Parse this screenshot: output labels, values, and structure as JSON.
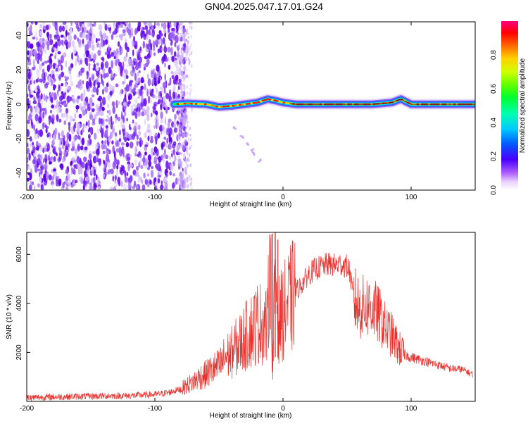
{
  "page": {
    "title": "GN04.2025.047.17.01.G24"
  },
  "chart_data": [
    {
      "type": "heatmap",
      "title": "GN04.2025.047.17.01.G24",
      "xlabel": "Height of straight line (km)",
      "ylabel": "Frequency (Hz)",
      "xlim": [
        -200,
        150
      ],
      "ylim": [
        -50,
        48
      ],
      "x_ticks": [
        -200,
        -100,
        0,
        100
      ],
      "y_ticks": [
        -40,
        -20,
        0,
        20,
        40
      ],
      "grid": false,
      "colorbar": {
        "label": "Normalized spectral amplitude",
        "range": [
          0,
          1
        ],
        "ticks": [
          0.0,
          0.2,
          0.4,
          0.6,
          0.8
        ]
      },
      "noise_region_x": [
        -200,
        -70
      ],
      "signal_start_x": -85,
      "ridge": {
        "x": [
          -85,
          -75,
          -60,
          -50,
          -40,
          -30,
          -20,
          -12,
          -5,
          0,
          10,
          30,
          50,
          70,
          85,
          92,
          100,
          120,
          150
        ],
        "y": [
          0,
          0.5,
          0,
          -1.5,
          -1,
          0,
          1,
          3,
          2,
          1,
          0,
          0,
          0,
          0,
          1,
          3,
          0,
          0,
          0
        ]
      },
      "trail": {
        "x": [
          -38,
          -32,
          -28,
          -24,
          -22,
          -18
        ],
        "y": [
          -14,
          -19,
          -23,
          -27,
          -29,
          -33
        ]
      }
    },
    {
      "type": "line",
      "xlabel": "Height of straight line (km)",
      "ylabel": "SNR (10 * v/v)",
      "xlim": [
        -200,
        150
      ],
      "ylim": [
        0,
        6900
      ],
      "x_ticks": [
        -200,
        -100,
        0,
        100
      ],
      "y_ticks": [
        2000,
        4000,
        6000
      ],
      "grid": false,
      "series": [
        {
          "color": "#e8322e",
          "x": [
            -200,
            -180,
            -160,
            -140,
            -120,
            -100,
            -90,
            -80,
            -70,
            -65,
            -60,
            -55,
            -50,
            -45,
            -40,
            -35,
            -30,
            -25,
            -20,
            -15,
            -12,
            -10,
            -8,
            -6,
            -4,
            0,
            5,
            10,
            15,
            20,
            25,
            30,
            35,
            40,
            45,
            50,
            52,
            55,
            60,
            65,
            70,
            75,
            80,
            85,
            90,
            95,
            100,
            110,
            120,
            130,
            140,
            148
          ],
          "y": [
            150,
            180,
            200,
            220,
            230,
            280,
            350,
            500,
            800,
            1000,
            1100,
            1300,
            1400,
            1800,
            2000,
            2300,
            2600,
            2900,
            3200,
            3200,
            3000,
            6600,
            1300,
            5800,
            3300,
            3600,
            4100,
            4500,
            4800,
            5200,
            5400,
            5500,
            5600,
            5550,
            5600,
            5500,
            5300,
            4200,
            3800,
            3900,
            3800,
            3500,
            3000,
            2700,
            2200,
            1900,
            1800,
            1650,
            1500,
            1350,
            1300,
            1100
          ]
        }
      ]
    }
  ]
}
